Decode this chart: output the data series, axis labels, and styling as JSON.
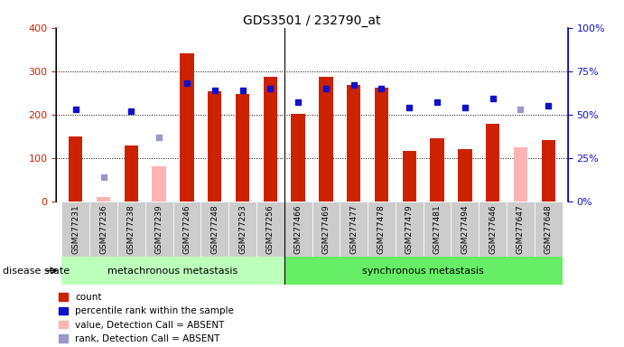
{
  "title": "GDS3501 / 232790_at",
  "samples": [
    "GSM277231",
    "GSM277236",
    "GSM277238",
    "GSM277239",
    "GSM277246",
    "GSM277248",
    "GSM277253",
    "GSM277256",
    "GSM277466",
    "GSM277469",
    "GSM277477",
    "GSM277478",
    "GSM277479",
    "GSM277481",
    "GSM277494",
    "GSM277646",
    "GSM277647",
    "GSM277648"
  ],
  "count_values": [
    150,
    null,
    128,
    null,
    342,
    253,
    247,
    287,
    202,
    287,
    268,
    261,
    116,
    145,
    120,
    178,
    null,
    141
  ],
  "absent_value_values": [
    null,
    10,
    null,
    80,
    null,
    null,
    null,
    null,
    null,
    null,
    null,
    null,
    null,
    null,
    null,
    null,
    124,
    null
  ],
  "percentile_values": [
    53,
    null,
    52,
    null,
    68,
    64,
    64,
    65,
    57,
    65,
    67,
    65,
    54,
    57,
    54,
    59,
    null,
    55
  ],
  "absent_rank_values": [
    null,
    14,
    null,
    37,
    null,
    null,
    null,
    null,
    null,
    null,
    null,
    null,
    null,
    null,
    null,
    null,
    53,
    null
  ],
  "group1_count": 8,
  "group2_count": 10,
  "group1_label": "metachronous metastasis",
  "group2_label": "synchronous metastasis",
  "disease_state_label": "disease state",
  "ylim_left": [
    0,
    400
  ],
  "yticks_left": [
    0,
    100,
    200,
    300,
    400
  ],
  "yticks_right": [
    "0%",
    "25%",
    "50%",
    "75%",
    "100%"
  ],
  "bar_color_present": "#cc2200",
  "bar_color_absent": "#ffb3b3",
  "dot_color_present": "#1111cc",
  "dot_color_absent": "#9999cc",
  "group1_bg": "#bbffbb",
  "group2_bg": "#66ee66",
  "tick_bg": "#cccccc",
  "right_axis_color": "#1111cc",
  "legend_labels": [
    "count",
    "percentile rank within the sample",
    "value, Detection Call = ABSENT",
    "rank, Detection Call = ABSENT"
  ],
  "legend_colors": [
    "#cc2200",
    "#1111cc",
    "#ffb3b3",
    "#9999cc"
  ]
}
